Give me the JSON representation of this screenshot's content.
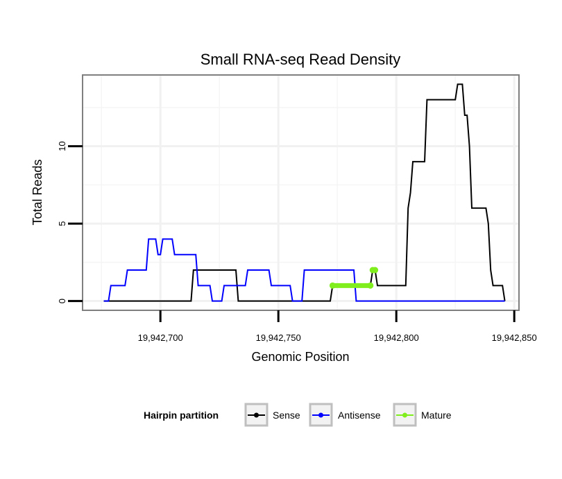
{
  "chart_data": {
    "type": "line",
    "title": "Small RNA-seq Read Density",
    "xlabel": "Genomic Position",
    "ylabel": "Total Reads",
    "xlim": [
      19942667,
      19942852
    ],
    "ylim": [
      -0.6,
      14.6
    ],
    "x_ticks": [
      {
        "value": 19942700,
        "label": "19,942,700"
      },
      {
        "value": 19942750,
        "label": "19,942,750"
      },
      {
        "value": 19942800,
        "label": "19,942,800"
      },
      {
        "value": 19942850,
        "label": "19,942,850"
      }
    ],
    "y_ticks": [
      {
        "value": 0,
        "label": "0"
      },
      {
        "value": 5,
        "label": "5"
      },
      {
        "value": 10,
        "label": "10"
      }
    ],
    "grid": true,
    "legend": {
      "title": "Hairpin partition",
      "position": "bottom",
      "entries": [
        "Sense",
        "Antisense",
        "Mature"
      ]
    },
    "series": [
      {
        "name": "Sense",
        "color": "#000000",
        "points": [
          [
            19942676,
            0
          ],
          [
            19942713,
            0
          ],
          [
            19942714,
            2
          ],
          [
            19942732,
            2
          ],
          [
            19942733,
            0
          ],
          [
            19942772,
            0
          ],
          [
            19942773,
            1
          ],
          [
            19942789,
            1
          ],
          [
            19942790,
            2
          ],
          [
            19942791,
            2
          ],
          [
            19942792,
            1
          ],
          [
            19942804,
            1
          ],
          [
            19942805,
            6
          ],
          [
            19942806,
            7
          ],
          [
            19942807,
            9
          ],
          [
            19942812,
            9
          ],
          [
            19942813,
            13
          ],
          [
            19942825,
            13
          ],
          [
            19942826,
            14
          ],
          [
            19942828,
            14
          ],
          [
            19942829,
            12
          ],
          [
            19942830,
            12
          ],
          [
            19942831,
            10
          ],
          [
            19942832,
            6
          ],
          [
            19942838,
            6
          ],
          [
            19942839,
            5
          ],
          [
            19942840,
            2
          ],
          [
            19942841,
            1
          ],
          [
            19942845,
            1
          ],
          [
            19942846,
            0
          ]
        ]
      },
      {
        "name": "Antisense",
        "color": "#0000ff",
        "points": [
          [
            19942676,
            0
          ],
          [
            19942678,
            0
          ],
          [
            19942679,
            1
          ],
          [
            19942685,
            1
          ],
          [
            19942686,
            2
          ],
          [
            19942694,
            2
          ],
          [
            19942695,
            4
          ],
          [
            19942698,
            4
          ],
          [
            19942699,
            3
          ],
          [
            19942700,
            3
          ],
          [
            19942701,
            4
          ],
          [
            19942705,
            4
          ],
          [
            19942706,
            3
          ],
          [
            19942715,
            3
          ],
          [
            19942716,
            1
          ],
          [
            19942721,
            1
          ],
          [
            19942722,
            0
          ],
          [
            19942726,
            0
          ],
          [
            19942727,
            1
          ],
          [
            19942736,
            1
          ],
          [
            19942737,
            2
          ],
          [
            19942746,
            2
          ],
          [
            19942747,
            1
          ],
          [
            19942755,
            1
          ],
          [
            19942756,
            0
          ],
          [
            19942760,
            0
          ],
          [
            19942761,
            2
          ],
          [
            19942782,
            2
          ],
          [
            19942783,
            0
          ],
          [
            19942846,
            0
          ]
        ]
      },
      {
        "name": "Mature",
        "color": "#80ee1c",
        "segments": [
          [
            [
              19942773,
              1
            ],
            [
              19942789,
              1
            ]
          ],
          [
            [
              19942790,
              2
            ],
            [
              19942791,
              2
            ]
          ]
        ]
      }
    ]
  }
}
